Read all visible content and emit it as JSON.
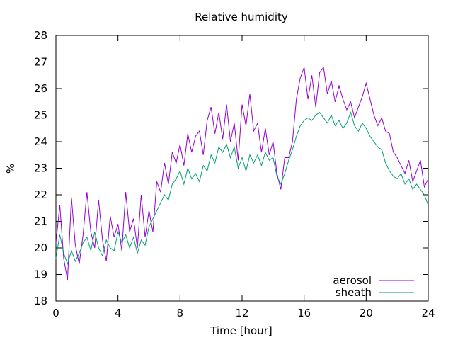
{
  "chart_data": {
    "type": "line",
    "title": "Relative humidity",
    "xlabel": "Time [hour]",
    "ylabel": "%",
    "xlim": [
      0,
      24
    ],
    "ylim": [
      18,
      28
    ],
    "xticks": [
      0,
      4,
      8,
      12,
      16,
      20,
      24
    ],
    "yticks": [
      18,
      19,
      20,
      21,
      22,
      23,
      24,
      25,
      26,
      27,
      28
    ],
    "grid": false,
    "legend_position": "bottom-right",
    "series": [
      {
        "name": "aerosol",
        "color": "#9400d3",
        "x": [
          0,
          0.25,
          0.5,
          0.75,
          1,
          1.25,
          1.5,
          1.75,
          2,
          2.25,
          2.5,
          2.75,
          3,
          3.25,
          3.5,
          3.75,
          4,
          4.25,
          4.5,
          4.75,
          5,
          5.25,
          5.5,
          5.75,
          6,
          6.25,
          6.5,
          6.75,
          7,
          7.25,
          7.5,
          7.75,
          8,
          8.25,
          8.5,
          8.75,
          9,
          9.25,
          9.5,
          9.75,
          10,
          10.25,
          10.5,
          10.75,
          11,
          11.25,
          11.5,
          11.75,
          12,
          12.25,
          12.5,
          12.75,
          13,
          13.25,
          13.5,
          13.75,
          14,
          14.25,
          14.5,
          14.75,
          15,
          15.25,
          15.5,
          15.75,
          16,
          16.25,
          16.5,
          16.75,
          17,
          17.25,
          17.5,
          17.75,
          18,
          18.25,
          18.5,
          18.75,
          19,
          19.25,
          19.5,
          19.75,
          20,
          20.25,
          20.5,
          20.75,
          21,
          21.25,
          21.5,
          21.75,
          22,
          22.25,
          22.5,
          22.75,
          23,
          23.25,
          23.5,
          23.75,
          24
        ],
        "y": [
          20.2,
          21.6,
          19.6,
          18.8,
          21.9,
          20.1,
          19.4,
          20.5,
          22.1,
          20.6,
          20.0,
          21.8,
          20.3,
          19.5,
          21.2,
          20.4,
          20.9,
          19.9,
          22.1,
          20.6,
          21.1,
          20.0,
          22.0,
          20.4,
          21.4,
          20.6,
          22.5,
          22.1,
          23.2,
          22.4,
          23.6,
          23.2,
          23.9,
          23.1,
          24.3,
          23.6,
          24.2,
          24.4,
          23.5,
          24.8,
          25.3,
          24.3,
          25.1,
          24.1,
          25.4,
          24.0,
          24.7,
          23.3,
          25.4,
          24.6,
          25.8,
          24.4,
          24.7,
          23.6,
          24.5,
          23.5,
          24.0,
          22.8,
          22.2,
          23.4,
          23.4,
          24.0,
          25.6,
          26.4,
          26.8,
          25.6,
          26.5,
          25.3,
          26.6,
          26.8,
          25.8,
          26.3,
          25.5,
          26.1,
          25.6,
          25.2,
          25.5,
          24.9,
          25.3,
          25.7,
          26.2,
          25.6,
          25.0,
          24.6,
          24.9,
          24.4,
          24.3,
          23.6,
          23.4,
          23.1,
          22.8,
          23.3,
          22.5,
          22.9,
          23.3,
          22.3,
          22.6
        ]
      },
      {
        "name": "sheath",
        "color": "#009e73",
        "x": [
          0,
          0.25,
          0.5,
          0.75,
          1,
          1.25,
          1.5,
          1.75,
          2,
          2.25,
          2.5,
          2.75,
          3,
          3.25,
          3.5,
          3.75,
          4,
          4.25,
          4.5,
          4.75,
          5,
          5.25,
          5.5,
          5.75,
          6,
          6.25,
          6.5,
          6.75,
          7,
          7.25,
          7.5,
          7.75,
          8,
          8.25,
          8.5,
          8.75,
          9,
          9.25,
          9.5,
          9.75,
          10,
          10.25,
          10.5,
          10.75,
          11,
          11.25,
          11.5,
          11.75,
          12,
          12.25,
          12.5,
          12.75,
          13,
          13.25,
          13.5,
          13.75,
          14,
          14.25,
          14.5,
          14.75,
          15,
          15.25,
          15.5,
          15.75,
          16,
          16.25,
          16.5,
          16.75,
          17,
          17.25,
          17.5,
          17.75,
          18,
          18.25,
          18.5,
          18.75,
          19,
          19.25,
          19.5,
          19.75,
          20,
          20.25,
          20.5,
          20.75,
          21,
          21.25,
          21.5,
          21.75,
          22,
          22.25,
          22.5,
          22.75,
          23,
          23.25,
          23.5,
          23.75,
          24
        ],
        "y": [
          19.6,
          20.5,
          19.8,
          19.4,
          19.9,
          19.5,
          19.8,
          20.2,
          20.4,
          19.9,
          20.6,
          20.0,
          19.7,
          20.3,
          20.0,
          19.9,
          20.6,
          20.2,
          20.5,
          20.0,
          20.4,
          19.8,
          20.3,
          20.1,
          20.8,
          21.1,
          21.4,
          21.7,
          22.0,
          21.8,
          22.4,
          22.6,
          22.9,
          22.4,
          23.0,
          22.6,
          22.8,
          22.5,
          23.1,
          22.9,
          23.5,
          23.2,
          23.8,
          23.6,
          23.9,
          23.4,
          23.8,
          23.0,
          23.4,
          22.9,
          23.5,
          23.2,
          23.5,
          23.1,
          23.6,
          23.3,
          23.4,
          22.7,
          22.4,
          22.8,
          23.3,
          23.7,
          24.2,
          24.6,
          24.8,
          24.9,
          24.8,
          25.0,
          25.1,
          24.9,
          24.7,
          25.0,
          24.6,
          24.8,
          24.5,
          24.7,
          25.1,
          24.6,
          24.4,
          24.7,
          24.5,
          24.2,
          24.0,
          23.8,
          23.7,
          23.2,
          22.9,
          22.7,
          22.6,
          22.8,
          22.4,
          22.6,
          22.2,
          22.4,
          22.2,
          22.0,
          21.6
        ]
      }
    ]
  }
}
